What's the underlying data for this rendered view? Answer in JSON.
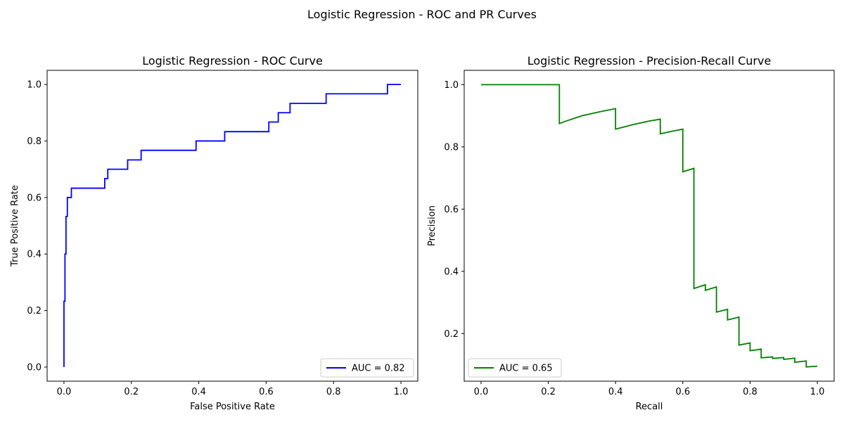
{
  "figure": {
    "suptitle": "Logistic Regression - ROC and PR Curves"
  },
  "chart_data": [
    {
      "type": "line",
      "title": "Logistic Regression - ROC Curve",
      "xlabel": "False Positive Rate",
      "ylabel": "True Positive Rate",
      "xlim": [
        -0.05,
        1.05
      ],
      "ylim": [
        -0.05,
        1.05
      ],
      "xticks": [
        0.0,
        0.2,
        0.4,
        0.6,
        0.8,
        1.0
      ],
      "yticks": [
        0.0,
        0.2,
        0.4,
        0.6,
        0.8,
        1.0
      ],
      "tick_labels_x": [
        "0.0",
        "0.2",
        "0.4",
        "0.6",
        "0.8",
        "1.0"
      ],
      "tick_labels_y": [
        "0.0",
        "0.2",
        "0.4",
        "0.6",
        "0.8",
        "1.0"
      ],
      "grid": false,
      "legend": "lower right",
      "series": [
        {
          "name": "AUC = 0.82",
          "color": "#0000ff",
          "x": [
            0.0,
            0.0,
            0.003,
            0.003,
            0.006,
            0.006,
            0.01,
            0.01,
            0.022,
            0.022,
            0.121,
            0.121,
            0.13,
            0.13,
            0.189,
            0.189,
            0.229,
            0.229,
            0.392,
            0.392,
            0.477,
            0.477,
            0.608,
            0.608,
            0.636,
            0.636,
            0.671,
            0.671,
            0.778,
            0.778,
            0.96,
            0.96,
            1.0
          ],
          "y": [
            0.0,
            0.233,
            0.233,
            0.4,
            0.4,
            0.533,
            0.533,
            0.6,
            0.6,
            0.633,
            0.633,
            0.667,
            0.667,
            0.7,
            0.7,
            0.733,
            0.733,
            0.767,
            0.767,
            0.8,
            0.8,
            0.833,
            0.833,
            0.867,
            0.867,
            0.9,
            0.9,
            0.933,
            0.933,
            0.967,
            0.967,
            1.0,
            1.0
          ]
        }
      ]
    },
    {
      "type": "line",
      "title": "Logistic Regression - Precision-Recall Curve",
      "xlabel": "Recall",
      "ylabel": "Precision",
      "xlim": [
        -0.05,
        1.05
      ],
      "ylim": [
        0.047,
        1.046
      ],
      "xticks": [
        0.0,
        0.2,
        0.4,
        0.6,
        0.8,
        1.0
      ],
      "yticks": [
        0.2,
        0.4,
        0.6,
        0.8,
        1.0
      ],
      "tick_labels_x": [
        "0.0",
        "0.2",
        "0.4",
        "0.6",
        "0.8",
        "1.0"
      ],
      "tick_labels_y": [
        "0.2",
        "0.4",
        "0.6",
        "0.8",
        "1.0"
      ],
      "grid": false,
      "legend": "lower left",
      "series": [
        {
          "name": "AUC = 0.65",
          "color": "#008000",
          "x": [
            0.0,
            0.233,
            0.233,
            0.25,
            0.3,
            0.35,
            0.4,
            0.4,
            0.45,
            0.5,
            0.533,
            0.533,
            0.567,
            0.6,
            0.6,
            0.633,
            0.633,
            0.667,
            0.667,
            0.7,
            0.7,
            0.733,
            0.733,
            0.767,
            0.767,
            0.8,
            0.8,
            0.833,
            0.833,
            0.867,
            0.867,
            0.9,
            0.9,
            0.933,
            0.933,
            0.967,
            0.967,
            1.0
          ],
          "y": [
            1.0,
            1.0,
            0.875,
            0.882,
            0.9,
            0.912,
            0.923,
            0.857,
            0.871,
            0.883,
            0.889,
            0.842,
            0.85,
            0.857,
            0.72,
            0.731,
            0.345,
            0.357,
            0.339,
            0.35,
            0.269,
            0.278,
            0.244,
            0.253,
            0.163,
            0.17,
            0.145,
            0.15,
            0.122,
            0.125,
            0.12,
            0.123,
            0.117,
            0.121,
            0.108,
            0.112,
            0.093,
            0.095
          ]
        }
      ]
    }
  ]
}
